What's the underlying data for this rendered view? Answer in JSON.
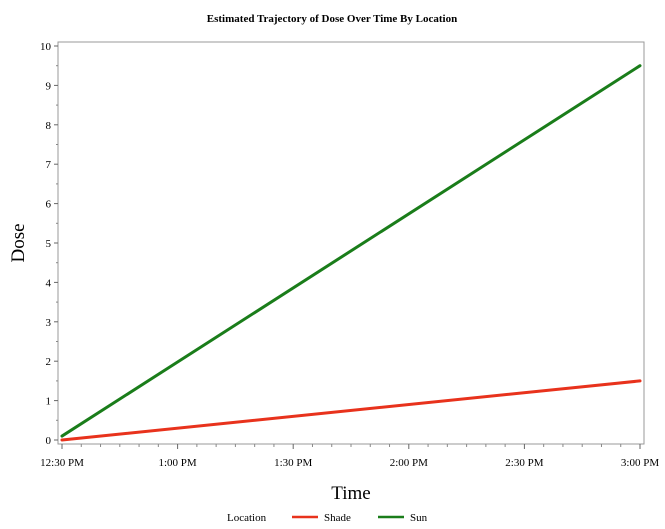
{
  "chart_data": {
    "type": "line",
    "title": "Estimated Trajectory of Dose Over Time By Location",
    "xlabel": "Time",
    "ylabel": "Dose",
    "x_ticks": [
      "12:30 PM",
      "1:00 PM",
      "1:30 PM",
      "2:00 PM",
      "2:30 PM",
      "3:00 PM"
    ],
    "y_ticks": [
      "0",
      "1",
      "2",
      "3",
      "4",
      "5",
      "6",
      "7",
      "8",
      "9",
      "10"
    ],
    "xlim": [
      "12:30 PM",
      "3:00 PM"
    ],
    "ylim": [
      0,
      10
    ],
    "grid": false,
    "legend": {
      "title": "Location",
      "placement": "bottom"
    },
    "series": [
      {
        "name": "Shade",
        "color": "#e8321c",
        "x": [
          "12:30 PM",
          "3:00 PM"
        ],
        "y": [
          0.0,
          1.5
        ]
      },
      {
        "name": "Sun",
        "color": "#1a7d1a",
        "x": [
          "12:30 PM",
          "3:00 PM"
        ],
        "y": [
          0.1,
          9.5
        ]
      }
    ]
  }
}
